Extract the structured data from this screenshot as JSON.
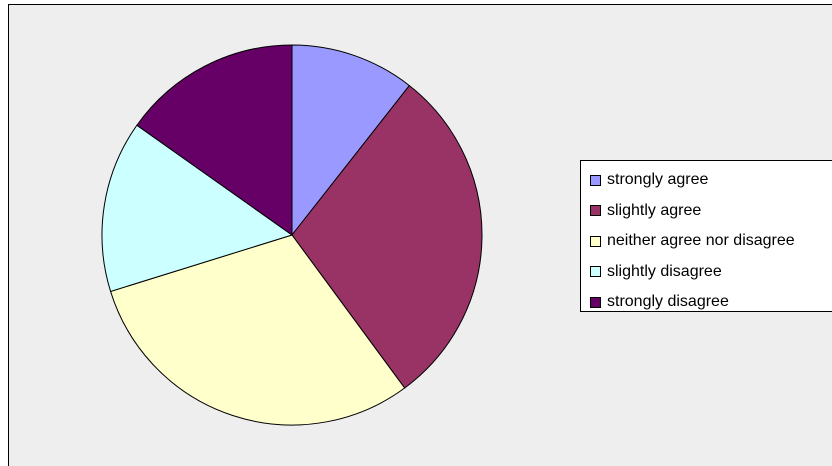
{
  "chart_data": {
    "type": "pie",
    "title": "",
    "categories": [
      "strongly agree",
      "slightly agree",
      "neither agree nor disagree",
      "slightly disagree",
      "strongly disagree"
    ],
    "values": [
      10.6,
      29.3,
      30.3,
      14.6,
      15.2
    ],
    "colors": [
      "#9999ff",
      "#993366",
      "#ffffcc",
      "#ccffff",
      "#660066"
    ],
    "start_angle_deg": 0,
    "direction": "clockwise",
    "legend_position": "right",
    "background": "#eeeeee"
  },
  "legend": {
    "items": [
      {
        "label": "strongly agree",
        "color": "#9999ff"
      },
      {
        "label": "slightly agree",
        "color": "#993366"
      },
      {
        "label": "neither agree nor disagree",
        "color": "#ffffcc"
      },
      {
        "label": "slightly disagree",
        "color": "#ccffff"
      },
      {
        "label": "strongly disagree",
        "color": "#660066"
      }
    ]
  }
}
